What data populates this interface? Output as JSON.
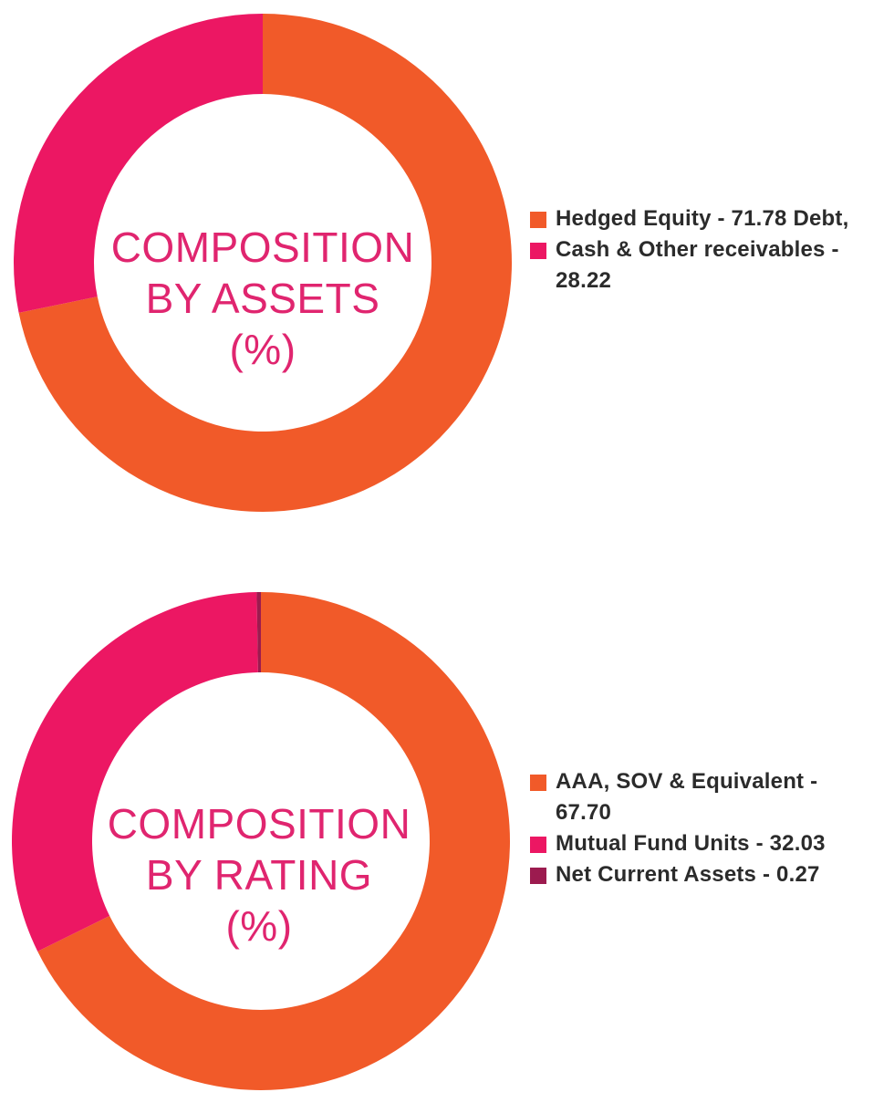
{
  "chart_data": [
    {
      "id": "assets",
      "type": "pie",
      "title_lines": [
        "COMPOSITION",
        "BY ASSETS",
        "(%)"
      ],
      "slices": [
        {
          "label": "Hedged Equity",
          "value": 71.78,
          "color": "#f15a29"
        },
        {
          "label": "Debt, Cash & Other receivables",
          "value": 28.22,
          "color": "#ec1763"
        }
      ],
      "legend": [
        {
          "text": "Hedged Equity - 71.78 Debt, Cash & Other receivables - 28.22",
          "color": "#f15a29"
        },
        {
          "text": "",
          "color": "#ec1763"
        }
      ]
    },
    {
      "id": "rating",
      "type": "pie",
      "title_lines": [
        "COMPOSITION",
        "BY RATING",
        "(%)"
      ],
      "slices": [
        {
          "label": "AAA, SOV & Equivalent",
          "value": 67.7,
          "color": "#f15a29"
        },
        {
          "label": "Mutual Fund Units",
          "value": 32.03,
          "color": "#ec1763"
        },
        {
          "label": "Net Current Assets",
          "value": 0.27,
          "color": "#9c1b4f"
        }
      ],
      "legend": [
        {
          "text": "AAA, SOV & Equivalent - 67.70",
          "color": "#f15a29"
        },
        {
          "text": "Mutual Fund Units - 32.03",
          "color": "#ec1763"
        },
        {
          "text": "Net Current Assets - 0.27",
          "color": "#9c1b4f"
        }
      ]
    }
  ]
}
